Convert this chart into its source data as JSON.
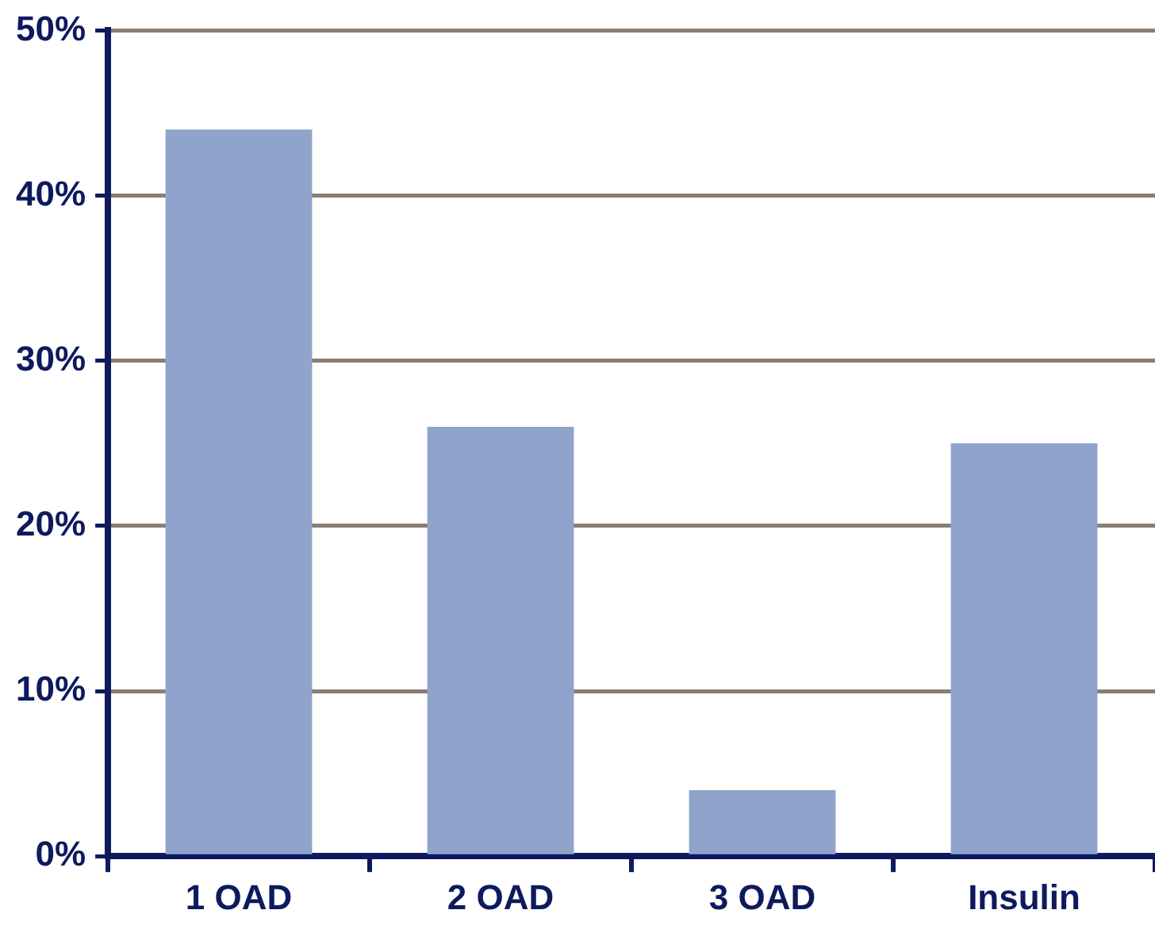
{
  "chart_data": {
    "type": "bar",
    "categories": [
      "1 OAD",
      "2 OAD",
      "3 OAD",
      "Insulin"
    ],
    "values": [
      44,
      26,
      4,
      25
    ],
    "color": "#8fa3cb",
    "ylim": [
      0,
      50
    ],
    "yticks": [
      {
        "value": 0,
        "label": "0%"
      },
      {
        "value": 10,
        "label": "10%"
      },
      {
        "value": 20,
        "label": "20%"
      },
      {
        "value": 30,
        "label": "30%"
      },
      {
        "value": 40,
        "label": "40%"
      },
      {
        "value": 50,
        "label": "50%"
      }
    ],
    "grid": "y",
    "legend": false
  }
}
